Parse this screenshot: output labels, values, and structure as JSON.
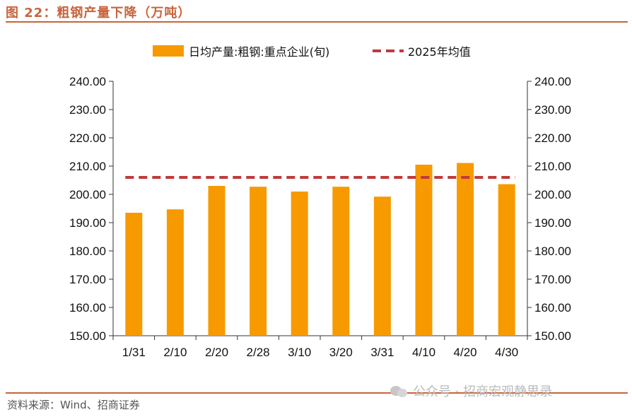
{
  "header": {
    "title": "图 22：粗钢产量下降（万吨）"
  },
  "footer": {
    "source": "资料来源：Wind、招商证券"
  },
  "watermark": {
    "text": "公众号 · 招商宏观静思录",
    "icon": "wechat-icon"
  },
  "colors": {
    "bar": "#f79a00",
    "avg_line": "#c0393b",
    "accent": "#c8643c"
  },
  "chart_data": {
    "type": "bar",
    "categories": [
      "1/31",
      "2/10",
      "2/20",
      "2/28",
      "3/10",
      "3/20",
      "3/31",
      "4/10",
      "4/20",
      "4/30"
    ],
    "series": [
      {
        "name": "日均产量:粗钢:重点企业(旬)",
        "type": "bar",
        "values": [
          193.5,
          194.7,
          203.0,
          202.7,
          201.0,
          202.7,
          199.2,
          210.5,
          211.1,
          203.6
        ]
      },
      {
        "name": "2025年均值",
        "type": "line-dashed",
        "values": [
          206.0,
          206.0,
          206.0,
          206.0,
          206.0,
          206.0,
          206.0,
          206.0,
          206.0,
          206.0
        ]
      }
    ],
    "ylim": [
      150,
      240
    ],
    "yticks": [
      "150.00",
      "160.00",
      "170.00",
      "180.00",
      "190.00",
      "200.00",
      "210.00",
      "220.00",
      "230.00",
      "240.00"
    ],
    "secondary_yticks": [
      "150.00",
      "160.00",
      "170.00",
      "180.00",
      "190.00",
      "200.00",
      "210.00",
      "220.00",
      "230.00",
      "240.00"
    ],
    "legend_position": "top-center",
    "grid": false
  }
}
